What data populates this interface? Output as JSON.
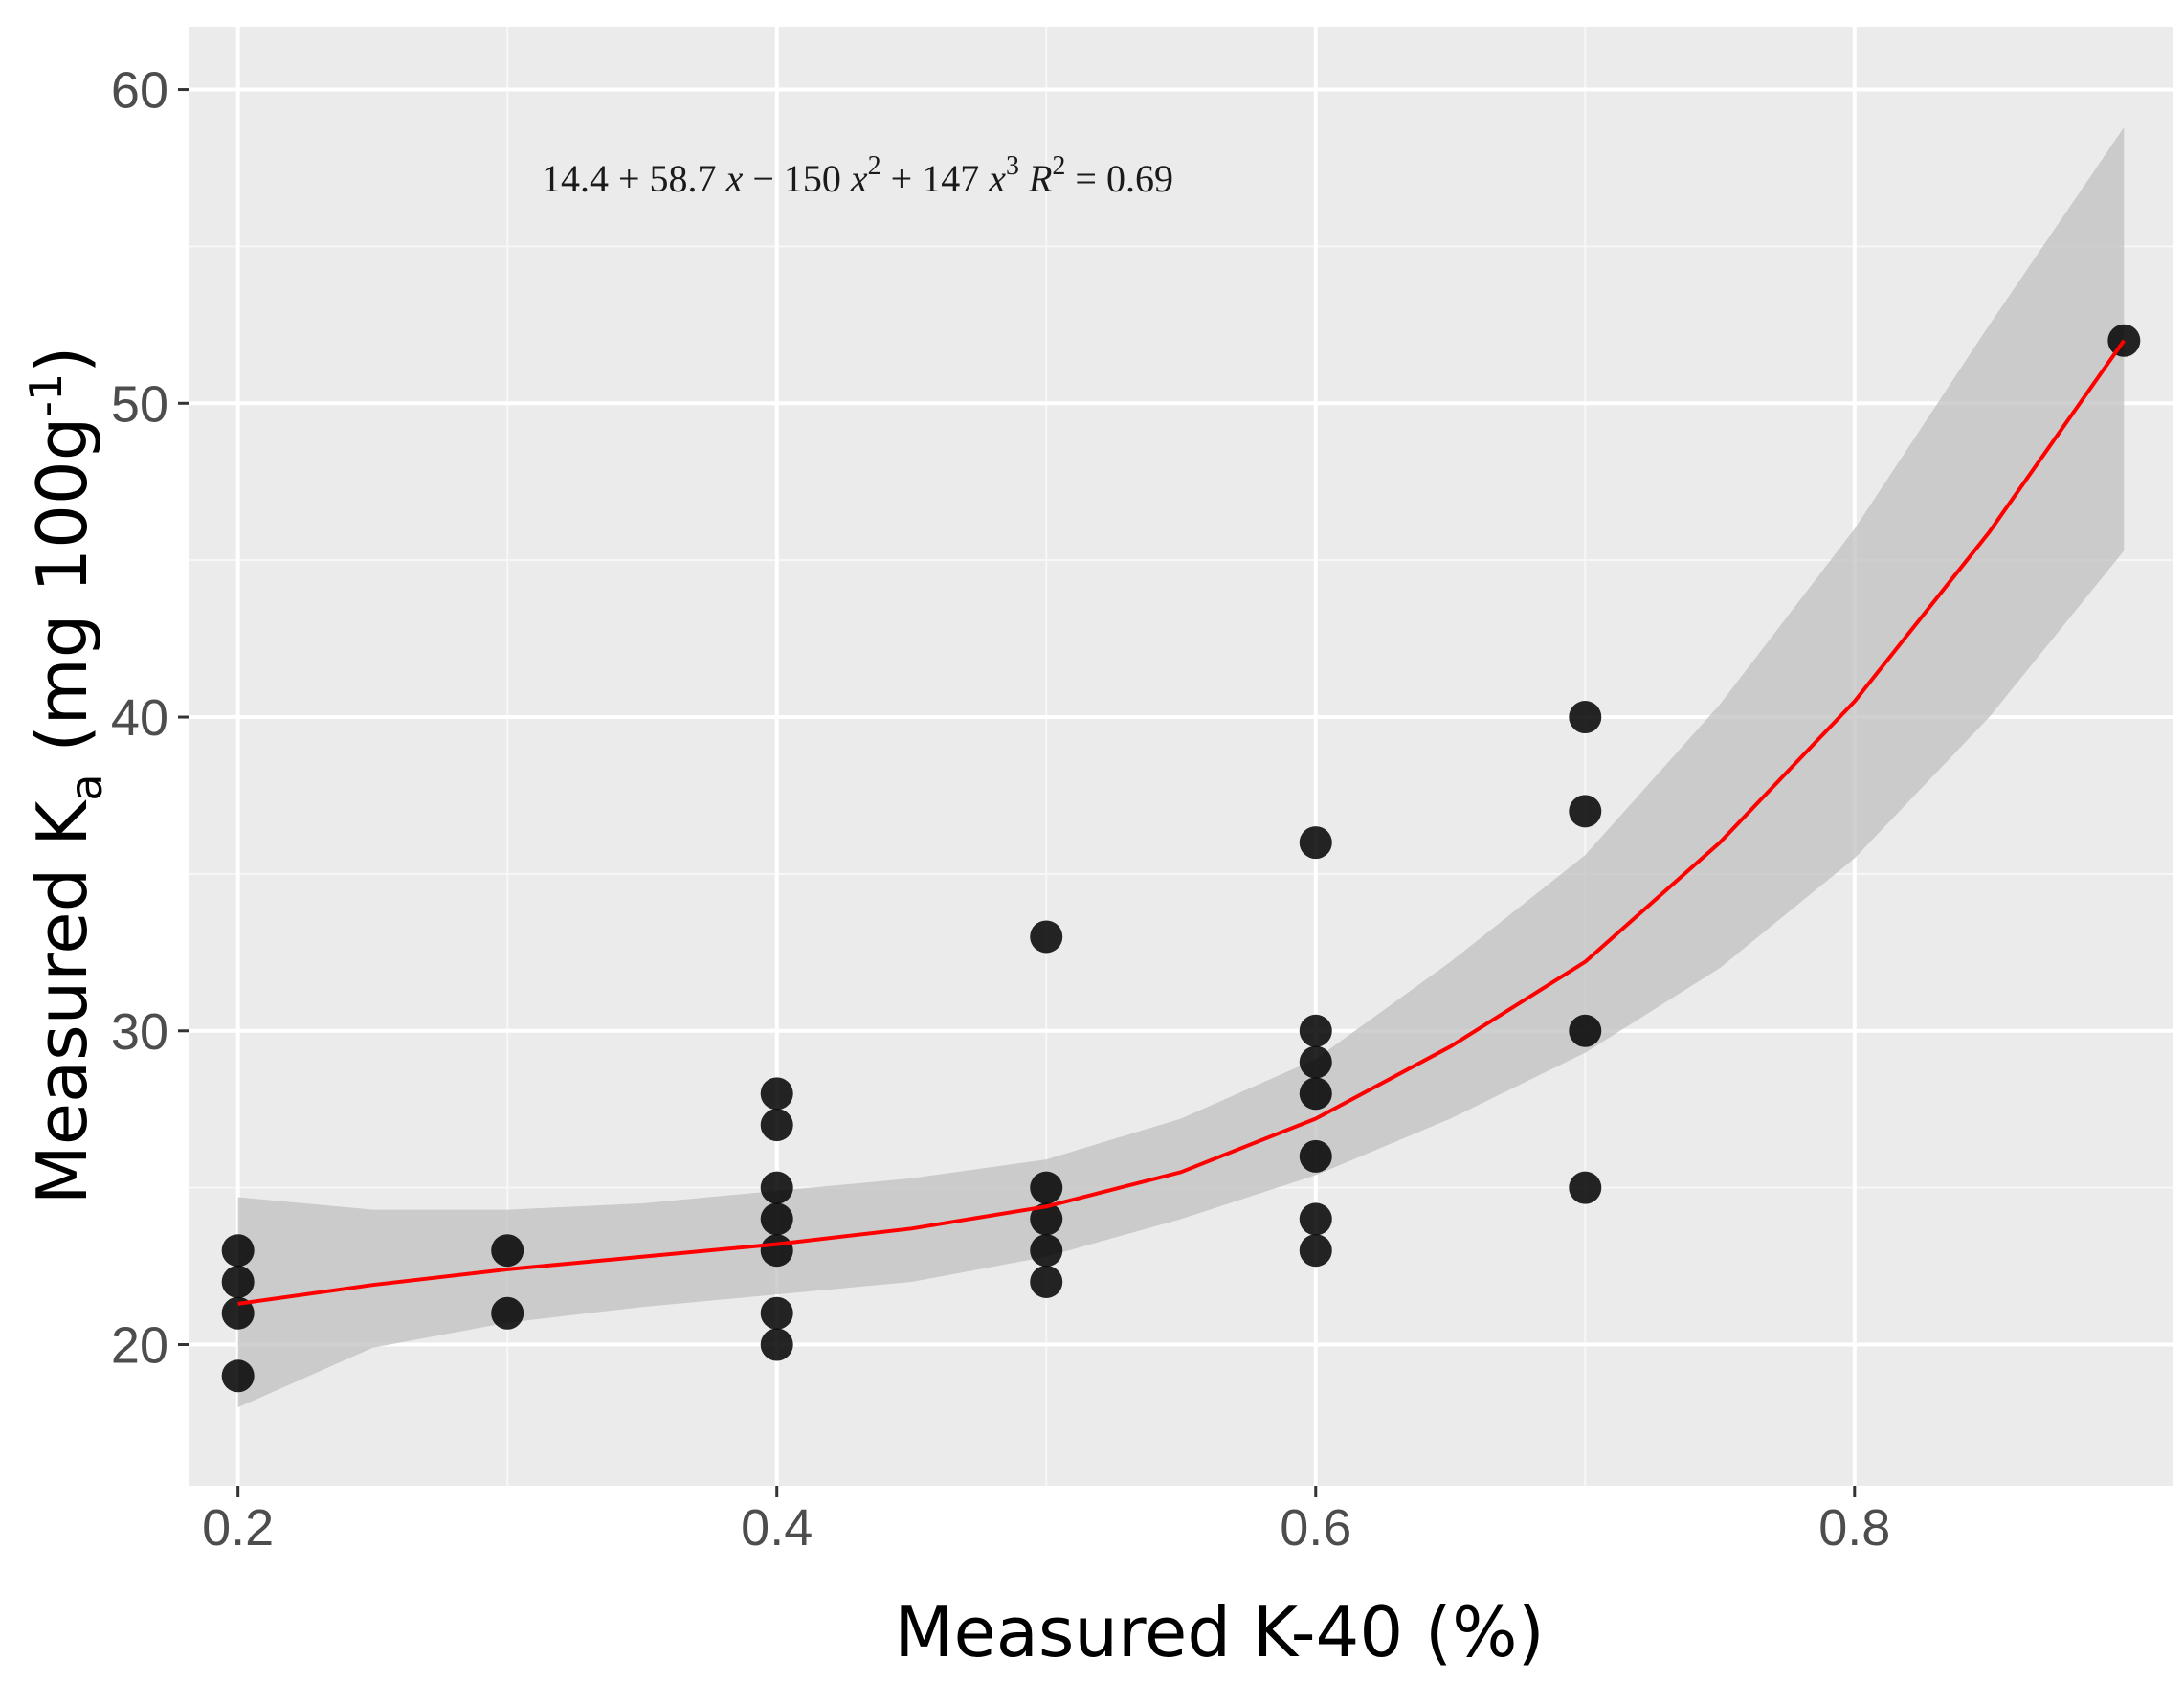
{
  "chart_data": {
    "type": "scatter",
    "title": "",
    "xlabel": "Measured K-40 (%)",
    "ylabel": {
      "main": "Measured K",
      "subscript": "a",
      "unit_open": " (mg 100g",
      "unit_sup": "-1",
      "unit_close": ")"
    },
    "xlim": [
      0.182,
      0.918
    ],
    "ylim": [
      15.5,
      62.0
    ],
    "x_ticks": [
      {
        "value": 0.2,
        "label": "0.2"
      },
      {
        "value": 0.4,
        "label": "0.4"
      },
      {
        "value": 0.6,
        "label": "0.6"
      },
      {
        "value": 0.8,
        "label": "0.8"
      }
    ],
    "y_ticks": [
      {
        "value": 20,
        "label": "20"
      },
      {
        "value": 30,
        "label": "30"
      },
      {
        "value": 40,
        "label": "40"
      },
      {
        "value": 50,
        "label": "50"
      },
      {
        "value": 60,
        "label": "60"
      }
    ],
    "minor_x": [
      0.3,
      0.5,
      0.7
    ],
    "minor_y": [
      25,
      35,
      45,
      55
    ],
    "grid": true,
    "points": [
      {
        "x": 0.2,
        "y": 19
      },
      {
        "x": 0.2,
        "y": 21
      },
      {
        "x": 0.2,
        "y": 22
      },
      {
        "x": 0.2,
        "y": 23
      },
      {
        "x": 0.3,
        "y": 21
      },
      {
        "x": 0.3,
        "y": 23
      },
      {
        "x": 0.4,
        "y": 20
      },
      {
        "x": 0.4,
        "y": 21
      },
      {
        "x": 0.4,
        "y": 23
      },
      {
        "x": 0.4,
        "y": 24
      },
      {
        "x": 0.4,
        "y": 25
      },
      {
        "x": 0.4,
        "y": 27
      },
      {
        "x": 0.4,
        "y": 28
      },
      {
        "x": 0.5,
        "y": 22
      },
      {
        "x": 0.5,
        "y": 23
      },
      {
        "x": 0.5,
        "y": 24
      },
      {
        "x": 0.5,
        "y": 25
      },
      {
        "x": 0.5,
        "y": 33
      },
      {
        "x": 0.6,
        "y": 23
      },
      {
        "x": 0.6,
        "y": 24
      },
      {
        "x": 0.6,
        "y": 26
      },
      {
        "x": 0.6,
        "y": 28
      },
      {
        "x": 0.6,
        "y": 29
      },
      {
        "x": 0.6,
        "y": 30
      },
      {
        "x": 0.6,
        "y": 36
      },
      {
        "x": 0.7,
        "y": 25
      },
      {
        "x": 0.7,
        "y": 30
      },
      {
        "x": 0.7,
        "y": 37
      },
      {
        "x": 0.7,
        "y": 40
      },
      {
        "x": 0.9,
        "y": 52
      }
    ],
    "fit_curve": [
      {
        "x": 0.2,
        "y": 21.3
      },
      {
        "x": 0.25,
        "y": 21.9
      },
      {
        "x": 0.3,
        "y": 22.4
      },
      {
        "x": 0.35,
        "y": 22.8
      },
      {
        "x": 0.4,
        "y": 23.2
      },
      {
        "x": 0.45,
        "y": 23.7
      },
      {
        "x": 0.5,
        "y": 24.4
      },
      {
        "x": 0.55,
        "y": 25.5
      },
      {
        "x": 0.6,
        "y": 27.2
      },
      {
        "x": 0.65,
        "y": 29.5
      },
      {
        "x": 0.7,
        "y": 32.2
      },
      {
        "x": 0.75,
        "y": 36.0
      },
      {
        "x": 0.8,
        "y": 40.5
      },
      {
        "x": 0.85,
        "y": 45.9
      },
      {
        "x": 0.9,
        "y": 52.0
      }
    ],
    "confidence_band": [
      {
        "x": 0.2,
        "lower": 18.0,
        "upper": 24.7
      },
      {
        "x": 0.25,
        "lower": 19.9,
        "upper": 24.3
      },
      {
        "x": 0.3,
        "lower": 20.7,
        "upper": 24.3
      },
      {
        "x": 0.35,
        "lower": 21.2,
        "upper": 24.5
      },
      {
        "x": 0.4,
        "lower": 21.6,
        "upper": 24.9
      },
      {
        "x": 0.45,
        "lower": 22.0,
        "upper": 25.3
      },
      {
        "x": 0.5,
        "lower": 22.8,
        "upper": 25.9
      },
      {
        "x": 0.55,
        "lower": 24.0,
        "upper": 27.2
      },
      {
        "x": 0.6,
        "lower": 25.4,
        "upper": 29.1
      },
      {
        "x": 0.65,
        "lower": 27.2,
        "upper": 32.2
      },
      {
        "x": 0.7,
        "lower": 29.3,
        "upper": 35.6
      },
      {
        "x": 0.75,
        "lower": 32.0,
        "upper": 40.4
      },
      {
        "x": 0.8,
        "lower": 35.5,
        "upper": 46.0
      },
      {
        "x": 0.85,
        "lower": 40.0,
        "upper": 52.5
      },
      {
        "x": 0.9,
        "lower": 45.3,
        "upper": 58.8
      }
    ],
    "annotation": {
      "parts": [
        {
          "text": "14.4 + 58.7 ",
          "style": "normal"
        },
        {
          "text": "x",
          "style": "italic"
        },
        {
          "text": " − 150 ",
          "style": "normal"
        },
        {
          "text": "x",
          "style": "italic"
        },
        {
          "text": "2",
          "style": "sup"
        },
        {
          "text": " + 147 ",
          "style": "normal"
        },
        {
          "text": "x",
          "style": "italic"
        },
        {
          "text": "3",
          "style": "sup"
        },
        {
          "text": "      ",
          "style": "normal"
        },
        {
          "text": "R",
          "style": "italic"
        },
        {
          "text": "2",
          "style": "sup"
        },
        {
          "text": " = 0.69",
          "style": "normal"
        }
      ]
    },
    "colors": {
      "panel": "#ebebeb",
      "grid_major": "#ffffff",
      "grid_minor": "#f7f7f7",
      "point": "#000000",
      "fit": "#ff0000",
      "band": "#c0c0c0"
    }
  }
}
